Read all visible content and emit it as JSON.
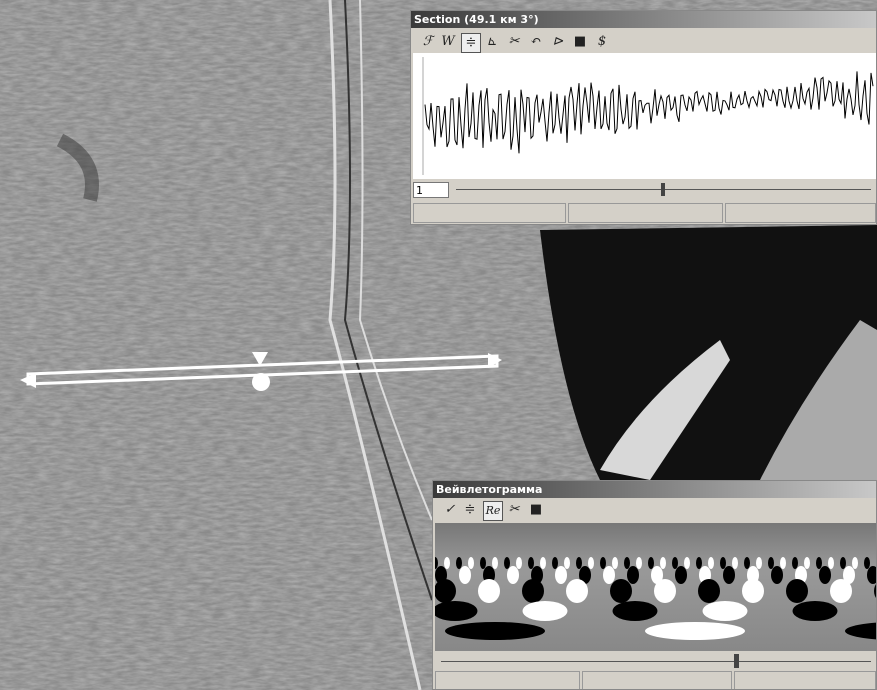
{
  "section_window": {
    "title": "Section (49.1 км 3°)",
    "toolbar_labels": [
      "ℱ",
      "W"
    ],
    "spinner_value": "1"
  },
  "wavelet_window": {
    "title": "Вейвлетограмма",
    "toolbar_label": "Re"
  }
}
